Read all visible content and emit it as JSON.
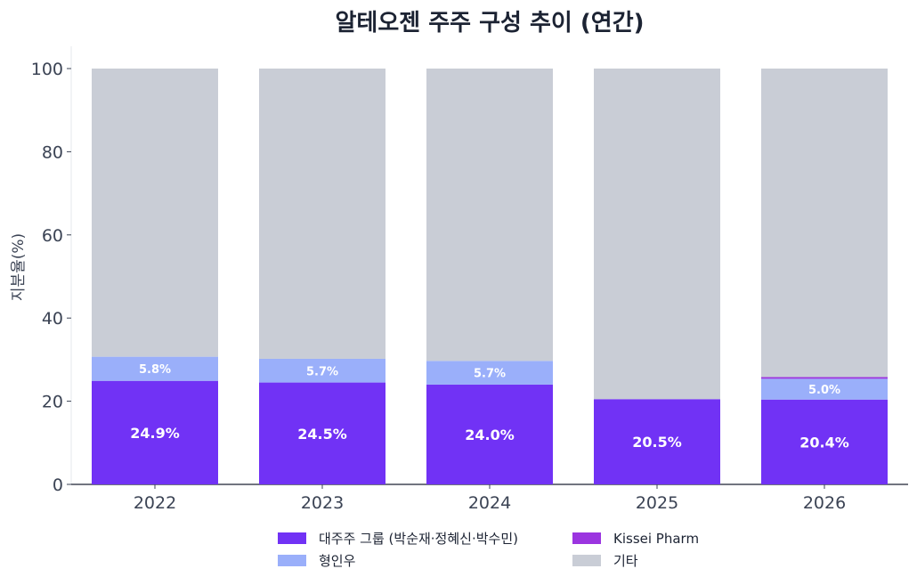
{
  "chart_data": {
    "type": "bar",
    "stacked": true,
    "title": "알테오젠 주주 구성 추이 (연간)",
    "xlabel": "",
    "ylabel": "지분율(%)",
    "ylim": [
      0,
      100
    ],
    "yticks": [
      0,
      20,
      40,
      60,
      80,
      100
    ],
    "categories": [
      "2022",
      "2023",
      "2024",
      "2025",
      "2026"
    ],
    "series": [
      {
        "name": "대주주 그룹 (박순재·정혜신·박수민)",
        "color": "#7132f5",
        "values": [
          24.9,
          24.5,
          24.0,
          20.5,
          20.4
        ],
        "labels": [
          "24.9%",
          "24.5%",
          "24.0%",
          "20.5%",
          "20.4%"
        ]
      },
      {
        "name": "형인우",
        "color": "#9aaffa",
        "values": [
          5.8,
          5.7,
          5.7,
          0,
          5.0
        ],
        "labels": [
          "5.8%",
          "5.7%",
          "5.7%",
          "",
          "5.0%"
        ]
      },
      {
        "name": "Kissei Pharm",
        "color": "#9b35e0",
        "values": [
          0,
          0,
          0,
          0,
          0.4
        ],
        "labels": [
          "",
          "",
          "",
          "",
          ""
        ]
      },
      {
        "name": "기타",
        "color": "#c9cdd6",
        "values": [
          69.3,
          69.8,
          70.3,
          79.5,
          74.2
        ],
        "labels": [
          "",
          "",
          "",
          "",
          ""
        ]
      }
    ],
    "grid": false,
    "legend_position": "bottom"
  }
}
